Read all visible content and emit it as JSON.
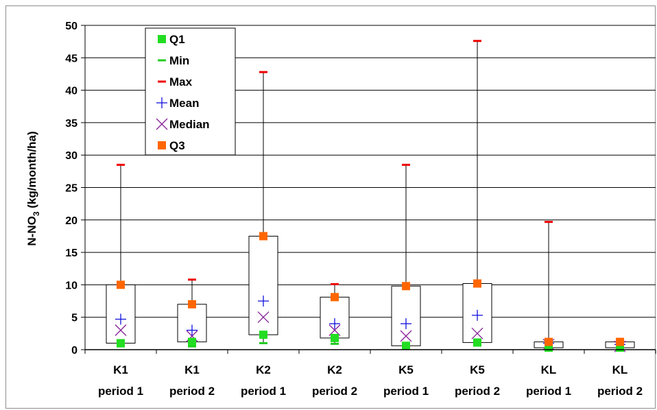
{
  "chart_data": {
    "type": "box",
    "ylabel_main": "N-NO",
    "ylabel_sub": "3",
    "ylabel_rest": " (kg/month/ha)",
    "ylim": [
      0,
      50
    ],
    "yticks": [
      0,
      5,
      10,
      15,
      20,
      25,
      30,
      35,
      40,
      45,
      50
    ],
    "grid": true,
    "legend_position": "top-left",
    "categories": [
      [
        "K1",
        "period 1"
      ],
      [
        "K1",
        "period 2"
      ],
      [
        "K2",
        "period 1"
      ],
      [
        "K2",
        "period 2"
      ],
      [
        "K5",
        "period 1"
      ],
      [
        "K5",
        "period 2"
      ],
      [
        "KL",
        "period 1"
      ],
      [
        "KL",
        "period 2"
      ]
    ],
    "series": [
      {
        "name": "Q1",
        "values": [
          1.0,
          1.2,
          2.3,
          1.8,
          0.6,
          1.1,
          0.3,
          0.3
        ]
      },
      {
        "name": "Min",
        "values": [
          0.5,
          0.5,
          1.0,
          0.9,
          0.3,
          0.8,
          0.1,
          0.1
        ]
      },
      {
        "name": "Max",
        "values": [
          28.5,
          10.8,
          42.8,
          10.1,
          28.5,
          47.6,
          19.7,
          1.6
        ]
      },
      {
        "name": "Mean",
        "values": [
          4.7,
          3.0,
          7.5,
          4.0,
          4.0,
          5.3,
          1.0,
          0.8
        ]
      },
      {
        "name": "Median",
        "values": [
          3.0,
          2.1,
          5.0,
          3.0,
          2.1,
          2.5,
          0.8,
          0.5
        ]
      },
      {
        "name": "Q3",
        "values": [
          10.0,
          7.0,
          17.5,
          8.1,
          9.8,
          10.2,
          1.2,
          1.2
        ]
      }
    ],
    "colors": {
      "Q1": "#22dd22",
      "Min": "#22cc22",
      "Max": "#ee0000",
      "Mean": "#1010dd",
      "Median": "#882299",
      "Q3": "#ff6600"
    }
  }
}
